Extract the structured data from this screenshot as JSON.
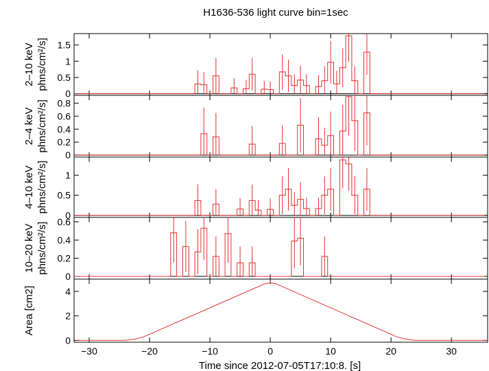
{
  "title": "H1636-536 light curve bin=1sec",
  "xlabel": "Time since 2012-07-05T17:10:8. [s]",
  "colors": {
    "trace": "#e03030",
    "axes": "#000000",
    "background": "#ffffff"
  },
  "chart_data": [
    {
      "type": "line",
      "step": true,
      "name": "2-10 keV",
      "ylabel": "2–10 keV  phns/cm²/s]",
      "ylabel_line1": "2–10 keV",
      "ylabel_line2": "phns/cm²/s]",
      "ylim": [
        -0.05,
        1.85
      ],
      "yticks": [
        0,
        0.5,
        1,
        1.5
      ],
      "ytick_labels": [
        "0",
        "0.5",
        "1",
        "1.5"
      ],
      "bins": [
        {
          "x": -12,
          "y": 0.3,
          "err": 0.42
        },
        {
          "x": -11,
          "y": 0.27,
          "err": 0.4
        },
        {
          "x": -9,
          "y": 0.55,
          "err": 0.55
        },
        {
          "x": -6,
          "y": 0.18,
          "err": 0.3
        },
        {
          "x": -4,
          "y": 0.15,
          "err": 0.28
        },
        {
          "x": -3,
          "y": 0.6,
          "err": 0.5
        },
        {
          "x": -1,
          "y": 0.14,
          "err": 0.26
        },
        {
          "x": 0,
          "y": 0.13,
          "err": 0.25
        },
        {
          "x": 2,
          "y": 0.67,
          "err": 0.55
        },
        {
          "x": 3,
          "y": 0.55,
          "err": 0.5
        },
        {
          "x": 4,
          "y": 0.25,
          "err": 0.35
        },
        {
          "x": 5,
          "y": 0.42,
          "err": 0.45
        },
        {
          "x": 6,
          "y": 0.25,
          "err": 0.35
        },
        {
          "x": 8,
          "y": 0.22,
          "err": 0.35
        },
        {
          "x": 9,
          "y": 0.4,
          "err": 0.45
        },
        {
          "x": 10,
          "y": 0.97,
          "err": 0.65
        },
        {
          "x": 11,
          "y": 0.3,
          "err": 0.4
        },
        {
          "x": 12,
          "y": 0.8,
          "err": 0.6
        },
        {
          "x": 13,
          "y": 1.78,
          "err": 0.8
        },
        {
          "x": 14,
          "y": 0.4,
          "err": 0.45
        },
        {
          "x": 16,
          "y": 1.28,
          "err": 0.7
        }
      ]
    },
    {
      "type": "line",
      "step": true,
      "name": "2-4 keV",
      "ylabel_line1": "2–4 keV",
      "ylabel_line2": "phns/cm²/s]",
      "ylim": [
        -0.03,
        0.92
      ],
      "yticks": [
        0,
        0.2,
        0.4,
        0.6,
        0.8
      ],
      "ytick_labels": [
        "0",
        "0.2",
        "0.4",
        "0.6",
        "0.8"
      ],
      "bins": [
        {
          "x": -11,
          "y": 0.33,
          "err": 0.4
        },
        {
          "x": -9,
          "y": 0.28,
          "err": 0.37
        },
        {
          "x": -3,
          "y": 0.17,
          "err": 0.28
        },
        {
          "x": 2,
          "y": 0.18,
          "err": 0.28
        },
        {
          "x": 5,
          "y": 0.46,
          "err": 0.42
        },
        {
          "x": 8,
          "y": 0.25,
          "err": 0.33
        },
        {
          "x": 9,
          "y": 0.15,
          "err": 0.27
        },
        {
          "x": 10,
          "y": 0.3,
          "err": 0.37
        },
        {
          "x": 12,
          "y": 0.37,
          "err": 0.4
        },
        {
          "x": 13,
          "y": 0.9,
          "err": 0.6
        },
        {
          "x": 14,
          "y": 0.53,
          "err": 0.47
        },
        {
          "x": 16,
          "y": 0.65,
          "err": 0.5
        }
      ]
    },
    {
      "type": "line",
      "step": true,
      "name": "4-10 keV",
      "ylabel_line1": "4–10 keV",
      "ylabel_line2": "phns/cm²/s]",
      "ylim": [
        -0.05,
        1.45
      ],
      "yticks": [
        0,
        0.5,
        1
      ],
      "ytick_labels": [
        "0",
        "0.5",
        "1"
      ],
      "bins": [
        {
          "x": -12,
          "y": 0.37,
          "err": 0.4
        },
        {
          "x": -9,
          "y": 0.28,
          "err": 0.37
        },
        {
          "x": -5,
          "y": 0.16,
          "err": 0.27
        },
        {
          "x": -3,
          "y": 0.37,
          "err": 0.4
        },
        {
          "x": -2,
          "y": 0.13,
          "err": 0.25
        },
        {
          "x": 0,
          "y": 0.15,
          "err": 0.27
        },
        {
          "x": 2,
          "y": 0.5,
          "err": 0.47
        },
        {
          "x": 3,
          "y": 0.65,
          "err": 0.53
        },
        {
          "x": 4,
          "y": 0.25,
          "err": 0.33
        },
        {
          "x": 5,
          "y": 0.4,
          "err": 0.43
        },
        {
          "x": 6,
          "y": 0.17,
          "err": 0.27
        },
        {
          "x": 8,
          "y": 0.17,
          "err": 0.27
        },
        {
          "x": 9,
          "y": 0.5,
          "err": 0.47
        },
        {
          "x": 10,
          "y": 0.65,
          "err": 0.53
        },
        {
          "x": 12,
          "y": 1.38,
          "err": 0.7
        },
        {
          "x": 13,
          "y": 1.28,
          "err": 0.67
        },
        {
          "x": 14,
          "y": 0.5,
          "err": 0.47
        },
        {
          "x": 16,
          "y": 0.65,
          "err": 0.53
        }
      ]
    },
    {
      "type": "line",
      "step": true,
      "name": "10-20 keV",
      "ylabel_line1": "10–20 keV",
      "ylabel_line2": "phns/cm²/s]",
      "ylim": [
        -0.03,
        0.65
      ],
      "yticks": [
        0,
        0.2,
        0.4,
        0.6
      ],
      "ytick_labels": [
        "0",
        "0.2",
        "0.4",
        "0.6"
      ],
      "bins": [
        {
          "x": -16,
          "y": 0.48,
          "err": 0.33
        },
        {
          "x": -14,
          "y": 0.33,
          "err": 0.28
        },
        {
          "x": -12,
          "y": 0.27,
          "err": 0.25
        },
        {
          "x": -11,
          "y": 0.53,
          "err": 0.35
        },
        {
          "x": -9,
          "y": 0.22,
          "err": 0.22
        },
        {
          "x": -7,
          "y": 0.47,
          "err": 0.32
        },
        {
          "x": -5,
          "y": 0.15,
          "err": 0.18
        },
        {
          "x": -3,
          "y": 0.15,
          "err": 0.18
        },
        {
          "x": 4,
          "y": 0.39,
          "err": 0.3
        },
        {
          "x": 5,
          "y": 0.42,
          "err": 0.3
        },
        {
          "x": 9,
          "y": 0.22,
          "err": 0.22
        }
      ]
    },
    {
      "type": "line",
      "name": "Area",
      "ylabel_line1": "Area [cm2]",
      "ylabel_line2": "",
      "ylim": [
        -0.15,
        5.0
      ],
      "yticks": [
        0,
        2,
        4
      ],
      "ytick_labels": [
        "0",
        "2",
        "4"
      ],
      "points": [
        [
          -32,
          0
        ],
        [
          -24,
          0
        ],
        [
          -23,
          0.06
        ],
        [
          -22,
          0.15
        ],
        [
          -21,
          0.28
        ],
        [
          -1,
          4.6
        ],
        [
          0,
          4.7
        ],
        [
          1,
          4.6
        ],
        [
          21,
          0.28
        ],
        [
          22,
          0.15
        ],
        [
          23,
          0.06
        ],
        [
          24,
          0
        ],
        [
          36,
          0
        ]
      ]
    }
  ],
  "xaxis": {
    "xlim": [
      -32.5,
      36
    ],
    "xticks": [
      -30,
      -20,
      -10,
      0,
      10,
      20,
      30
    ],
    "xtick_labels": [
      "−30",
      "−20",
      "−10",
      "0",
      "10",
      "20",
      "30"
    ]
  }
}
